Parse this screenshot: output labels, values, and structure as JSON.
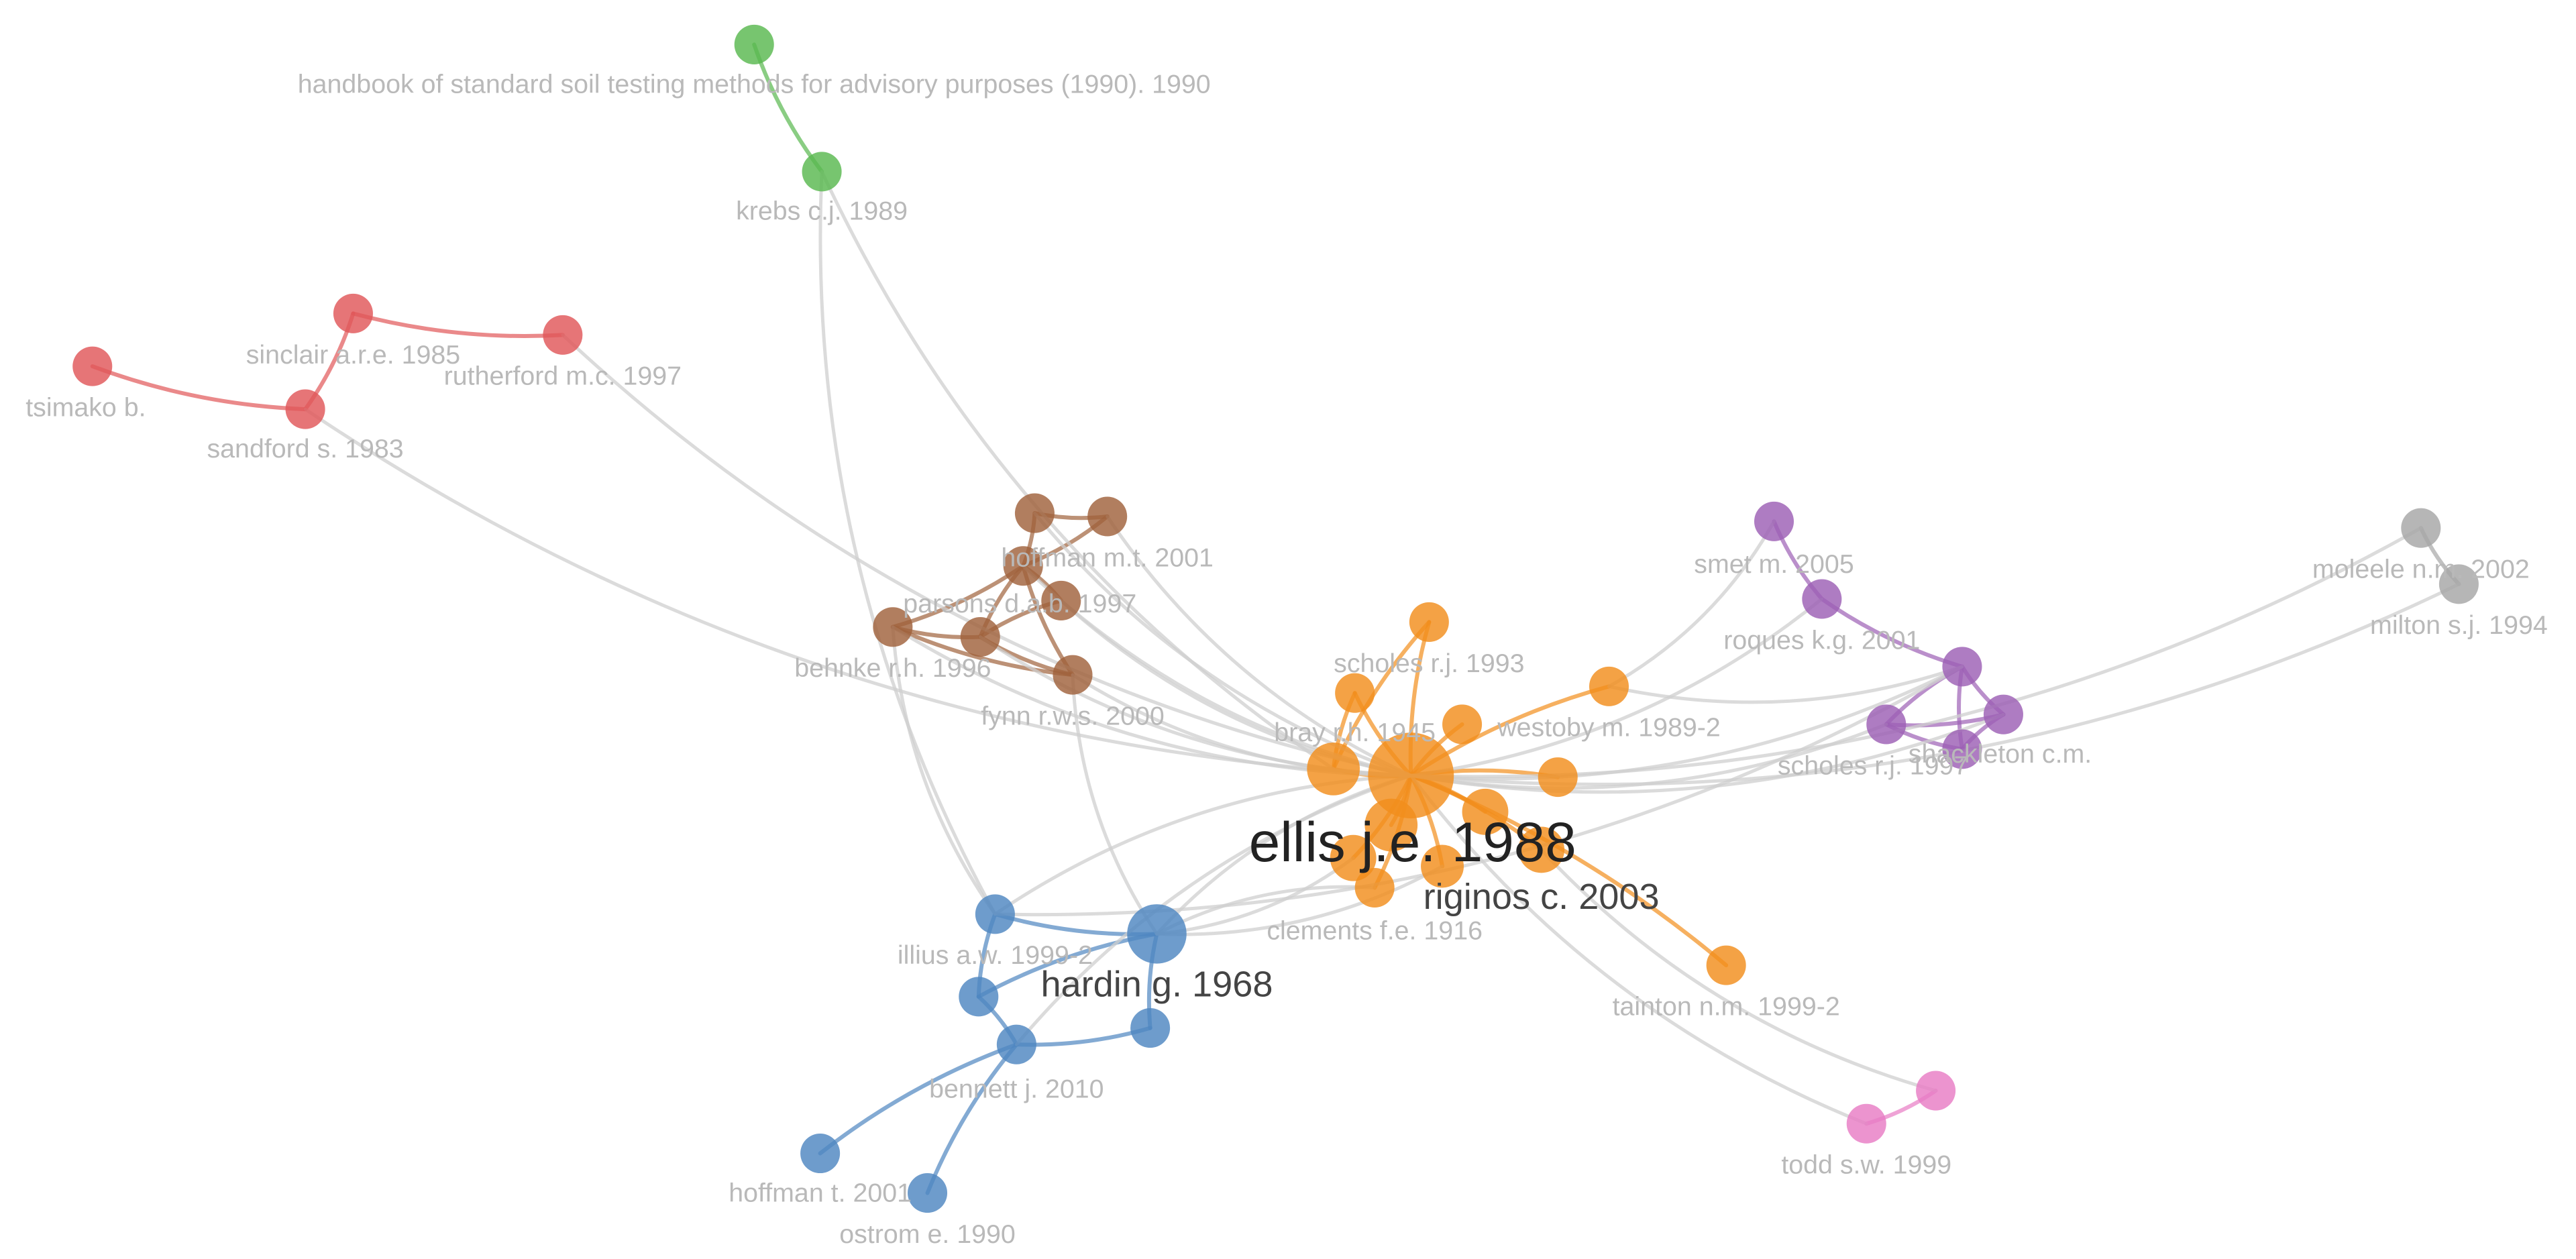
{
  "colors": {
    "red": "#e15759",
    "green": "#59b84f",
    "brown": "#a0623c",
    "orange": "#f28e1c",
    "purple": "#9c5fb5",
    "blue": "#4e86c1",
    "pink": "#e87cc4",
    "gray": "#a6a6a6",
    "edge_gray": "#cfcfcf",
    "label_gray": "#b9b9b9",
    "label_dark": "#222222"
  },
  "nodes": [
    {
      "id": "handbook",
      "label": "handbook of standard soil testing methods for advisory purposes (1990). 1990",
      "cluster": "green"
    },
    {
      "id": "krebs",
      "label": "krebs c.j. 1989",
      "cluster": "green"
    },
    {
      "id": "sinclair",
      "label": "sinclair a.r.e. 1985",
      "cluster": "red"
    },
    {
      "id": "rutherford",
      "label": "rutherford m.c. 1997",
      "cluster": "red"
    },
    {
      "id": "tsimako",
      "label": "tsimako b.",
      "cluster": "red"
    },
    {
      "id": "sandford",
      "label": "sandford s. 1983",
      "cluster": "red"
    },
    {
      "id": "hoffman2001",
      "label": "hoffman m.t. 2001",
      "cluster": "brown"
    },
    {
      "id": "parsons",
      "label": "parsons d.a.b. 1997",
      "cluster": "brown"
    },
    {
      "id": "behnke",
      "label": "behnke r.h. 1996",
      "cluster": "brown"
    },
    {
      "id": "fynn",
      "label": "fynn r.w.s. 2000",
      "cluster": "brown"
    },
    {
      "id": "b_extra1",
      "label": "",
      "cluster": "brown"
    },
    {
      "id": "b_extra2",
      "label": "",
      "cluster": "brown"
    },
    {
      "id": "b_extra3",
      "label": "",
      "cluster": "brown"
    },
    {
      "id": "scholes1993",
      "label": "scholes r.j. 1993",
      "cluster": "orange"
    },
    {
      "id": "bray",
      "label": "bray r.h. 1945",
      "cluster": "orange"
    },
    {
      "id": "westoby",
      "label": "westoby m. 1989-2",
      "cluster": "orange"
    },
    {
      "id": "ellis",
      "label": "ellis j.e. 1988",
      "cluster": "orange"
    },
    {
      "id": "riginos",
      "label": "riginos c. 2003",
      "cluster": "orange"
    },
    {
      "id": "clements",
      "label": "clements f.e. 1916",
      "cluster": "orange"
    },
    {
      "id": "tainton",
      "label": "tainton n.m. 1999-2",
      "cluster": "orange"
    },
    {
      "id": "o_extra1",
      "label": "",
      "cluster": "orange"
    },
    {
      "id": "o_extra2",
      "label": "",
      "cluster": "orange"
    },
    {
      "id": "o_extra3",
      "label": "",
      "cluster": "orange"
    },
    {
      "id": "o_extra4",
      "label": "",
      "cluster": "orange"
    },
    {
      "id": "o_extra5",
      "label": "",
      "cluster": "orange"
    },
    {
      "id": "o_extra6",
      "label": "",
      "cluster": "orange"
    },
    {
      "id": "o_extra7",
      "label": "",
      "cluster": "orange"
    },
    {
      "id": "smet",
      "label": "smet m. 2005",
      "cluster": "purple"
    },
    {
      "id": "roques",
      "label": "roques k.g. 2001",
      "cluster": "purple"
    },
    {
      "id": "shackleton",
      "label": "shackleton c.m.",
      "cluster": "purple"
    },
    {
      "id": "scholes1997",
      "label": "scholes r.j. 1997",
      "cluster": "purple"
    },
    {
      "id": "p_extra1",
      "label": "",
      "cluster": "purple"
    },
    {
      "id": "p_extra2",
      "label": "",
      "cluster": "purple"
    },
    {
      "id": "moleele",
      "label": "moleele n.m. 2002",
      "cluster": "gray"
    },
    {
      "id": "milton",
      "label": "milton s.j. 1994",
      "cluster": "gray"
    },
    {
      "id": "illius",
      "label": "illius a.w. 1999-2",
      "cluster": "blue"
    },
    {
      "id": "hardin",
      "label": "hardin g. 1968",
      "cluster": "blue"
    },
    {
      "id": "bennett",
      "label": "bennett j. 2010",
      "cluster": "blue"
    },
    {
      "id": "hoffman2001b",
      "label": "hoffman t. 2001",
      "cluster": "blue"
    },
    {
      "id": "ostrom",
      "label": "ostrom e. 1990",
      "cluster": "blue"
    },
    {
      "id": "bl_extra1",
      "label": "",
      "cluster": "blue"
    },
    {
      "id": "bl_extra2",
      "label": "",
      "cluster": "blue"
    },
    {
      "id": "todd",
      "label": "todd s.w. 1999",
      "cluster": "pink"
    },
    {
      "id": "pk_extra1",
      "label": "",
      "cluster": "pink"
    }
  ],
  "edges": [
    [
      "handbook",
      "krebs"
    ],
    [
      "tsimako",
      "sandford"
    ],
    [
      "sandford",
      "sinclair"
    ],
    [
      "sinclair",
      "rutherford"
    ],
    [
      "behnke",
      "parsons"
    ],
    [
      "behnke",
      "b_extra2"
    ],
    [
      "behnke",
      "fynn"
    ],
    [
      "parsons",
      "hoffman2001"
    ],
    [
      "parsons",
      "b_extra1"
    ],
    [
      "b_extra1",
      "hoffman2001"
    ],
    [
      "parsons",
      "b_extra2"
    ],
    [
      "b_extra2",
      "fynn"
    ],
    [
      "parsons",
      "fynn"
    ],
    [
      "b_extra3",
      "parsons"
    ],
    [
      "b_extra3",
      "b_extra2"
    ],
    [
      "scholes1993",
      "ellis"
    ],
    [
      "bray",
      "ellis"
    ],
    [
      "westoby",
      "ellis"
    ],
    [
      "riginos",
      "ellis"
    ],
    [
      "clements",
      "ellis"
    ],
    [
      "tainton",
      "ellis"
    ],
    [
      "o_extra1",
      "ellis"
    ],
    [
      "o_extra2",
      "ellis"
    ],
    [
      "o_extra3",
      "ellis"
    ],
    [
      "o_extra4",
      "ellis"
    ],
    [
      "o_extra5",
      "ellis"
    ],
    [
      "o_extra6",
      "ellis"
    ],
    [
      "o_extra7",
      "ellis"
    ],
    [
      "scholes1993",
      "o_extra1"
    ],
    [
      "bray",
      "o_extra1"
    ],
    [
      "smet",
      "roques"
    ],
    [
      "roques",
      "shackleton"
    ],
    [
      "shackleton",
      "scholes1997"
    ],
    [
      "shackleton",
      "p_extra1"
    ],
    [
      "shackleton",
      "p_extra2"
    ],
    [
      "scholes1997",
      "p_extra1"
    ],
    [
      "scholes1997",
      "p_extra2"
    ],
    [
      "p_extra1",
      "p_extra2"
    ],
    [
      "moleele",
      "milton"
    ],
    [
      "illius",
      "hardin"
    ],
    [
      "hardin",
      "bl_extra1"
    ],
    [
      "hardin",
      "bl_extra2"
    ],
    [
      "bennett",
      "bl_extra1"
    ],
    [
      "bennett",
      "bl_extra2"
    ],
    [
      "bennett",
      "hoffman2001b"
    ],
    [
      "bennett",
      "ostrom"
    ],
    [
      "illius",
      "bl_extra1"
    ],
    [
      "todd",
      "pk_extra1"
    ],
    [
      "krebs",
      "illius"
    ],
    [
      "krebs",
      "o_extra1"
    ],
    [
      "sandford",
      "ellis"
    ],
    [
      "rutherford",
      "ellis"
    ],
    [
      "hoffman2001",
      "ellis"
    ],
    [
      "parsons",
      "ellis"
    ],
    [
      "behnke",
      "ellis"
    ],
    [
      "fynn",
      "ellis"
    ],
    [
      "b_extra1",
      "ellis"
    ],
    [
      "b_extra2",
      "ellis"
    ],
    [
      "b_extra3",
      "ellis"
    ],
    [
      "fynn",
      "hardin"
    ],
    [
      "behnke",
      "illius"
    ],
    [
      "westoby",
      "smet"
    ],
    [
      "ellis",
      "roques"
    ],
    [
      "ellis",
      "shackleton"
    ],
    [
      "ellis",
      "scholes1997"
    ],
    [
      "ellis",
      "p_extra1"
    ],
    [
      "ellis",
      "moleele"
    ],
    [
      "ellis",
      "milton"
    ],
    [
      "ellis",
      "hardin"
    ],
    [
      "ellis",
      "illius"
    ],
    [
      "ellis",
      "bennett"
    ],
    [
      "ellis",
      "todd"
    ],
    [
      "riginos",
      "pk_extra1"
    ],
    [
      "hardin",
      "o_extra3"
    ],
    [
      "hardin",
      "o_extra4"
    ],
    [
      "clements",
      "hardin"
    ],
    [
      "westoby",
      "shackleton"
    ],
    [
      "illius",
      "shackleton"
    ]
  ]
}
